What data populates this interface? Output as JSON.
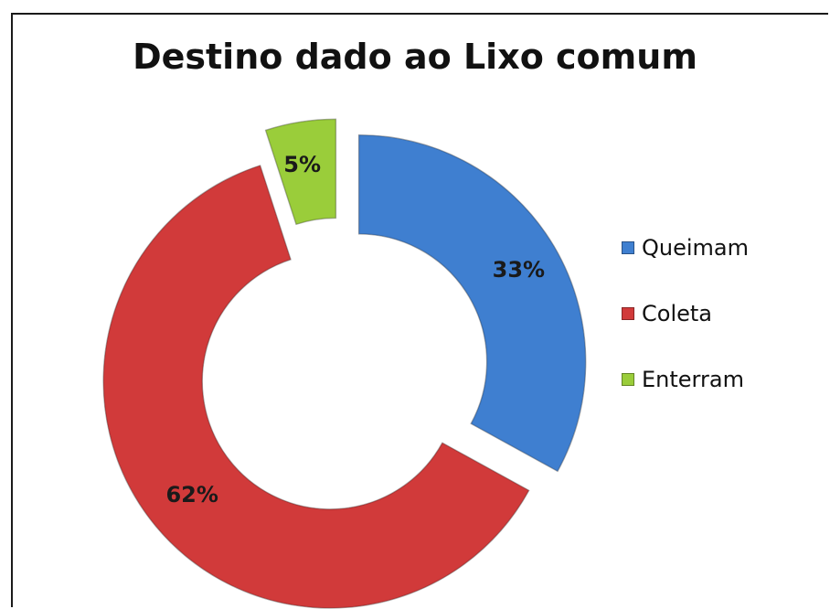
{
  "chart_data": {
    "type": "pie",
    "title": "Destino dado ao Lixo comum",
    "donut": true,
    "categories": [
      "Queimam",
      "Coleta",
      "Enterram"
    ],
    "values": [
      33,
      62,
      5
    ],
    "labels": [
      "33%",
      "62%",
      "5%"
    ],
    "colors": [
      "#3f7fd0",
      "#d13a3a",
      "#9acd3a"
    ],
    "legend_position": "right"
  }
}
